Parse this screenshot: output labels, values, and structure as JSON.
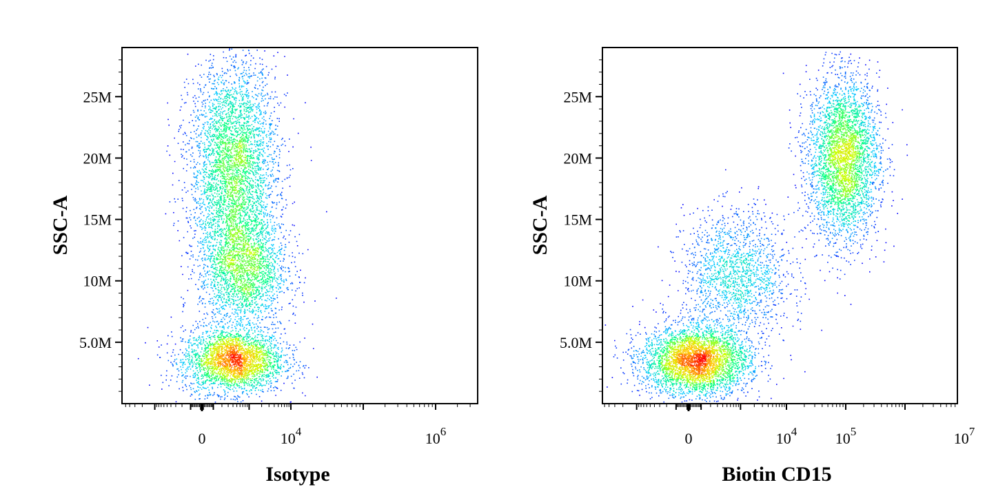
{
  "chart_data": [
    {
      "type": "scatter",
      "xlabel": "Isotype",
      "ylabel": "SSC-A",
      "y_scale": "linear",
      "x_scale": "biexponential",
      "ylim": [
        0,
        29000000
      ],
      "y_ticks": [
        {
          "value": 5000000,
          "label": "5.0M"
        },
        {
          "value": 10000000,
          "label": "10M"
        },
        {
          "value": 15000000,
          "label": "15M"
        },
        {
          "value": 20000000,
          "label": "20M"
        },
        {
          "value": 25000000,
          "label": "25M"
        }
      ],
      "x_ticks": [
        {
          "value": 0,
          "label": "0",
          "exp": ""
        },
        {
          "value": 10000,
          "label": "10",
          "exp": "4"
        },
        {
          "value": 1000000,
          "label": "10",
          "exp": "6"
        }
      ],
      "density_colormap": [
        "#0000ff",
        "#00c8ff",
        "#00ff80",
        "#c8ff00",
        "#ffc800",
        "#ff0000"
      ],
      "populations": [
        {
          "x_center": 400,
          "y_center": 3500000,
          "x_spread": 0.35,
          "y_spread": 1300000,
          "weight": 0.32
        },
        {
          "x_center": 400,
          "y_center": 19500000,
          "x_spread": 0.3,
          "y_spread": 4200000,
          "weight": 0.42
        },
        {
          "x_center": 700,
          "y_center": 11000000,
          "x_spread": 0.3,
          "y_spread": 2600000,
          "weight": 0.26
        }
      ]
    },
    {
      "type": "scatter",
      "xlabel": "Biotin CD15",
      "ylabel": "SSC-A",
      "y_scale": "linear",
      "x_scale": "biexponential",
      "ylim": [
        0,
        29000000
      ],
      "y_ticks": [
        {
          "value": 5000000,
          "label": "5.0M"
        },
        {
          "value": 10000000,
          "label": "10M"
        },
        {
          "value": 15000000,
          "label": "15M"
        },
        {
          "value": 20000000,
          "label": "20M"
        },
        {
          "value": 25000000,
          "label": "25M"
        }
      ],
      "x_ticks": [
        {
          "value": 0,
          "label": "0",
          "exp": ""
        },
        {
          "value": 10000,
          "label": "10",
          "exp": "4"
        },
        {
          "value": 100000,
          "label": "10",
          "exp": "5"
        },
        {
          "value": 10000000,
          "label": "10",
          "exp": "7"
        }
      ],
      "density_colormap": [
        "#0000ff",
        "#00c8ff",
        "#00ff80",
        "#c8ff00",
        "#ffc800",
        "#ff0000"
      ],
      "populations": [
        {
          "x_center": 50,
          "y_center": 3500000,
          "x_spread": 0.45,
          "y_spread": 1400000,
          "weight": 0.42
        },
        {
          "x_center": 800,
          "y_center": 10500000,
          "x_spread": 0.45,
          "y_spread": 2600000,
          "weight": 0.18
        },
        {
          "x_center": 90000,
          "y_center": 20000000,
          "x_spread": 0.3,
          "y_spread": 3300000,
          "weight": 0.4
        }
      ]
    }
  ]
}
